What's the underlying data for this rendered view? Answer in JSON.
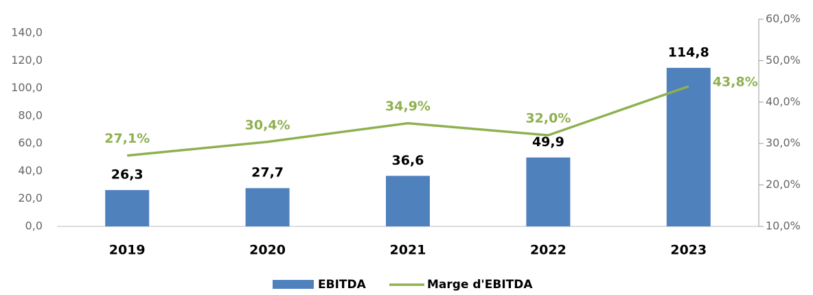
{
  "chart_data": {
    "type": "bar-line",
    "categories": [
      "2019",
      "2020",
      "2021",
      "2022",
      "2023"
    ],
    "series": [
      {
        "name": "EBITDA",
        "color": "#4f81bd",
        "type": "bar",
        "values": [
          26.3,
          27.7,
          36.6,
          49.9,
          114.8
        ],
        "value_labels": [
          "26,3",
          "27,7",
          "36,6",
          "49,9",
          "114,8"
        ]
      },
      {
        "name": "Marge d'EBITDA",
        "color": "#8fb04f",
        "type": "line",
        "axis": "y2",
        "values": [
          27.1,
          30.4,
          34.9,
          32.0,
          43.8
        ],
        "value_labels": [
          "27,1%",
          "30,4%",
          "34,9%",
          "32,0%",
          "43,8%"
        ]
      }
    ],
    "ylim": [
      0,
      150
    ],
    "yticks": [
      {
        "value": 0,
        "label": "0,0"
      },
      {
        "value": 20,
        "label": "20,0"
      },
      {
        "value": 40,
        "label": "40,0"
      },
      {
        "value": 60,
        "label": "60,0"
      },
      {
        "value": 80,
        "label": "80,0"
      },
      {
        "value": 100,
        "label": "100,0"
      },
      {
        "value": 120,
        "label": "120,0"
      },
      {
        "value": 140,
        "label": "140,0"
      }
    ],
    "y2lim": [
      10,
      60
    ],
    "y2ticks": [
      {
        "value": 10,
        "label": "10,0%"
      },
      {
        "value": 20,
        "label": "20,0%"
      },
      {
        "value": 30,
        "label": "30,0%"
      },
      {
        "value": 40,
        "label": "40,0%"
      },
      {
        "value": 50,
        "label": "50,0%"
      },
      {
        "value": 60,
        "label": "60,0%"
      }
    ],
    "legend": "bottom"
  }
}
